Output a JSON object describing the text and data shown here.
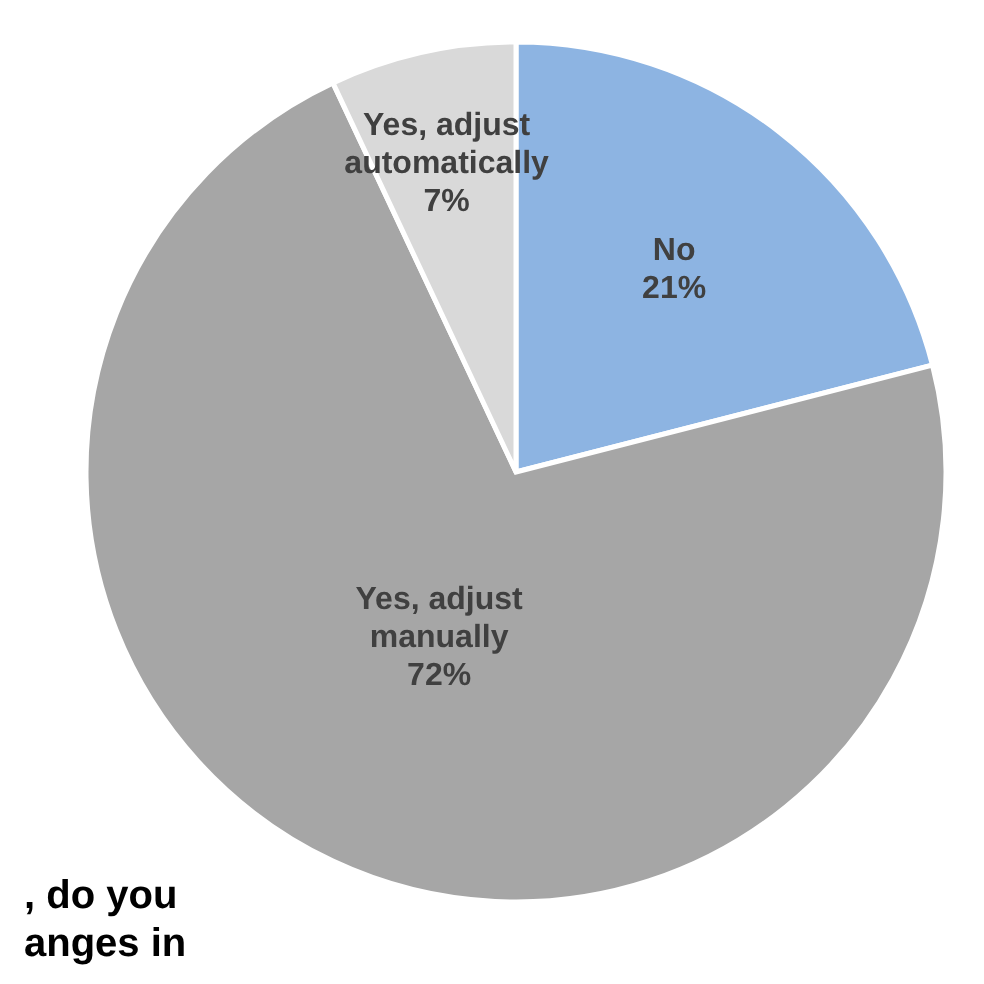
{
  "chart_data": {
    "type": "pie",
    "categories": [
      "No",
      "Yes, adjust manually",
      "Yes, adjust automatically"
    ],
    "values": [
      21,
      72,
      7
    ],
    "colors": [
      "#8db4e2",
      "#a6a6a6",
      "#d9d9d9"
    ],
    "value_labels": [
      "21%",
      "72%",
      "7%"
    ],
    "annotations": [
      ", do you",
      "anges in"
    ]
  }
}
